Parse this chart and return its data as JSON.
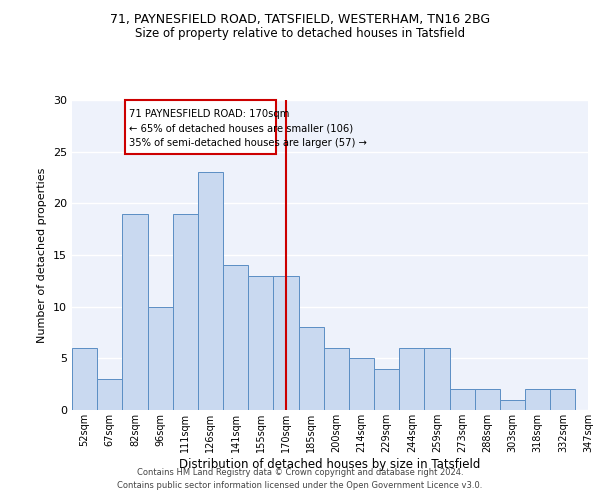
{
  "title1": "71, PAYNESFIELD ROAD, TATSFIELD, WESTERHAM, TN16 2BG",
  "title2": "Size of property relative to detached houses in Tatsfield",
  "xlabel": "Distribution of detached houses by size in Tatsfield",
  "ylabel": "Number of detached properties",
  "bin_labels": [
    "52sqm",
    "67sqm",
    "82sqm",
    "96sqm",
    "111sqm",
    "126sqm",
    "141sqm",
    "155sqm",
    "170sqm",
    "185sqm",
    "200sqm",
    "214sqm",
    "229sqm",
    "244sqm",
    "259sqm",
    "273sqm",
    "288sqm",
    "303sqm",
    "318sqm",
    "332sqm",
    "347sqm"
  ],
  "bar_values": [
    6,
    3,
    19,
    10,
    19,
    23,
    14,
    13,
    13,
    8,
    6,
    5,
    4,
    6,
    6,
    2,
    2,
    1,
    2,
    2
  ],
  "bar_color": "#c9d9f0",
  "bar_edge_color": "#5b8ec4",
  "vline_x_index": 8,
  "vline_color": "#cc0000",
  "annotation_title": "71 PAYNESFIELD ROAD: 170sqm",
  "annotation_line1": "← 65% of detached houses are smaller (106)",
  "annotation_line2": "35% of semi-detached houses are larger (57) →",
  "annotation_box_color": "#cc0000",
  "ylim": [
    0,
    30
  ],
  "yticks": [
    0,
    5,
    10,
    15,
    20,
    25,
    30
  ],
  "background_color": "#eef2fb",
  "footer1": "Contains HM Land Registry data © Crown copyright and database right 2024.",
  "footer2": "Contains public sector information licensed under the Open Government Licence v3.0."
}
